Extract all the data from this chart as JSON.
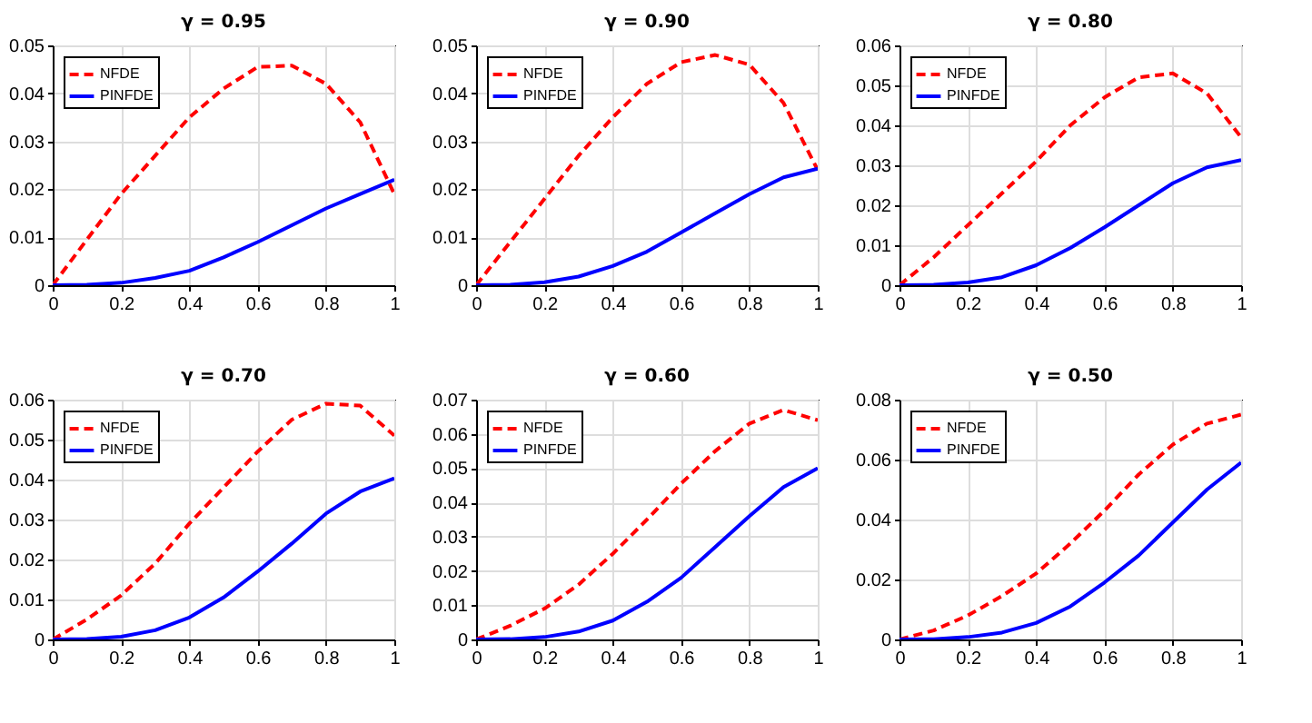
{
  "chart_data": [
    {
      "type": "line",
      "title": "γ = 0.95",
      "x": [
        0,
        0.1,
        0.2,
        0.3,
        0.4,
        0.5,
        0.6,
        0.7,
        0.8,
        0.9,
        1
      ],
      "xlim": [
        0,
        1
      ],
      "xticks": [
        0,
        0.2,
        0.4,
        0.6,
        0.8,
        1
      ],
      "ylim": [
        0,
        0.05
      ],
      "yticks": [
        0,
        0.01,
        0.02,
        0.03,
        0.04,
        0.05
      ],
      "grid": true,
      "legend": "top left",
      "series": [
        {
          "name": "NFDE",
          "color": "#ff0000",
          "line_style": "dashed",
          "values": [
            0,
            0.0095,
            0.019,
            0.027,
            0.035,
            0.041,
            0.0455,
            0.0458,
            0.042,
            0.034,
            0.019
          ]
        },
        {
          "name": "PINFDE",
          "color": "#0000ff",
          "line_style": "solid",
          "values": [
            0,
            0.0001,
            0.0005,
            0.0015,
            0.003,
            0.0058,
            0.009,
            0.0125,
            0.016,
            0.019,
            0.022
          ]
        }
      ]
    },
    {
      "type": "line",
      "title": "γ = 0.90",
      "x": [
        0,
        0.1,
        0.2,
        0.3,
        0.4,
        0.5,
        0.6,
        0.7,
        0.8,
        0.9,
        1
      ],
      "xlim": [
        0,
        1
      ],
      "xticks": [
        0,
        0.2,
        0.4,
        0.6,
        0.8,
        1
      ],
      "ylim": [
        0,
        0.05
      ],
      "yticks": [
        0,
        0.01,
        0.02,
        0.03,
        0.04,
        0.05
      ],
      "grid": true,
      "legend": "top left",
      "series": [
        {
          "name": "NFDE",
          "color": "#ff0000",
          "line_style": "dashed",
          "values": [
            0,
            0.009,
            0.018,
            0.027,
            0.035,
            0.042,
            0.0465,
            0.048,
            0.046,
            0.038,
            0.024
          ]
        },
        {
          "name": "PINFDE",
          "color": "#0000ff",
          "line_style": "solid",
          "values": [
            0,
            0.0001,
            0.0006,
            0.0018,
            0.004,
            0.007,
            0.011,
            0.015,
            0.019,
            0.0225,
            0.0243
          ]
        }
      ]
    },
    {
      "type": "line",
      "title": "γ = 0.80",
      "x": [
        0,
        0.1,
        0.2,
        0.3,
        0.4,
        0.5,
        0.6,
        0.7,
        0.8,
        0.9,
        1
      ],
      "xlim": [
        0,
        1
      ],
      "xticks": [
        0,
        0.2,
        0.4,
        0.6,
        0.8,
        1
      ],
      "ylim": [
        0,
        0.06
      ],
      "yticks": [
        0,
        0.01,
        0.02,
        0.03,
        0.04,
        0.05,
        0.06
      ],
      "grid": true,
      "legend": "top left",
      "series": [
        {
          "name": "NFDE",
          "color": "#ff0000",
          "line_style": "dashed",
          "values": [
            0,
            0.007,
            0.015,
            0.023,
            0.031,
            0.04,
            0.047,
            0.052,
            0.053,
            0.048,
            0.037
          ]
        },
        {
          "name": "PINFDE",
          "color": "#0000ff",
          "line_style": "solid",
          "values": [
            0,
            0.0001,
            0.0007,
            0.002,
            0.005,
            0.0093,
            0.0145,
            0.02,
            0.0255,
            0.0295,
            0.0313
          ]
        }
      ]
    },
    {
      "type": "line",
      "title": "γ = 0.70",
      "x": [
        0,
        0.1,
        0.2,
        0.3,
        0.4,
        0.5,
        0.6,
        0.7,
        0.8,
        0.9,
        1
      ],
      "xlim": [
        0,
        1
      ],
      "xticks": [
        0,
        0.2,
        0.4,
        0.6,
        0.8,
        1
      ],
      "ylim": [
        0,
        0.06
      ],
      "yticks": [
        0,
        0.01,
        0.02,
        0.03,
        0.04,
        0.05,
        0.06
      ],
      "grid": true,
      "legend": "top left",
      "series": [
        {
          "name": "NFDE",
          "color": "#ff0000",
          "line_style": "dashed",
          "values": [
            0,
            0.005,
            0.011,
            0.019,
            0.029,
            0.038,
            0.047,
            0.055,
            0.059,
            0.0585,
            0.051
          ]
        },
        {
          "name": "PINFDE",
          "color": "#0000ff",
          "line_style": "solid",
          "values": [
            0,
            0.0001,
            0.0007,
            0.0023,
            0.0055,
            0.0105,
            0.017,
            0.024,
            0.0315,
            0.037,
            0.0403
          ]
        }
      ]
    },
    {
      "type": "line",
      "title": "γ = 0.60",
      "x": [
        0,
        0.1,
        0.2,
        0.3,
        0.4,
        0.5,
        0.6,
        0.7,
        0.8,
        0.9,
        1
      ],
      "xlim": [
        0,
        1
      ],
      "xticks": [
        0,
        0.2,
        0.4,
        0.6,
        0.8,
        1
      ],
      "ylim": [
        0,
        0.07
      ],
      "yticks": [
        0,
        0.01,
        0.02,
        0.03,
        0.04,
        0.05,
        0.06,
        0.07
      ],
      "grid": true,
      "legend": "top left",
      "series": [
        {
          "name": "NFDE",
          "color": "#ff0000",
          "line_style": "dashed",
          "values": [
            0,
            0.004,
            0.009,
            0.016,
            0.025,
            0.035,
            0.0455,
            0.055,
            0.063,
            0.067,
            0.064
          ]
        },
        {
          "name": "PINFDE",
          "color": "#0000ff",
          "line_style": "solid",
          "values": [
            0,
            0.0001,
            0.0007,
            0.0023,
            0.0055,
            0.011,
            0.018,
            0.027,
            0.036,
            0.0445,
            0.05
          ]
        }
      ]
    },
    {
      "type": "line",
      "title": "γ = 0.50",
      "x": [
        0,
        0.1,
        0.2,
        0.3,
        0.4,
        0.5,
        0.6,
        0.7,
        0.8,
        0.9,
        1
      ],
      "xlim": [
        0,
        1
      ],
      "xticks": [
        0,
        0.2,
        0.4,
        0.6,
        0.8,
        1
      ],
      "ylim": [
        0,
        0.08
      ],
      "yticks": [
        0,
        0.02,
        0.04,
        0.06,
        0.08
      ],
      "grid": true,
      "legend": "top left",
      "series": [
        {
          "name": "NFDE",
          "color": "#ff0000",
          "line_style": "dashed",
          "values": [
            0,
            0.003,
            0.008,
            0.0145,
            0.022,
            0.032,
            0.043,
            0.055,
            0.065,
            0.072,
            0.075
          ]
        },
        {
          "name": "PINFDE",
          "color": "#0000ff",
          "line_style": "solid",
          "values": [
            0,
            0.0001,
            0.0008,
            0.0023,
            0.0055,
            0.011,
            0.019,
            0.028,
            0.039,
            0.05,
            0.059
          ]
        }
      ]
    }
  ]
}
